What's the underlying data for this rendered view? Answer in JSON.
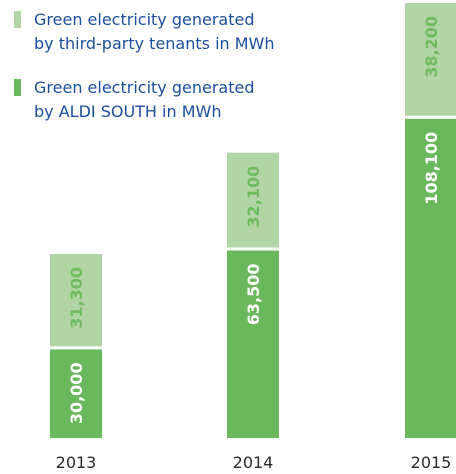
{
  "colors": {
    "aldi_south": "#69b85b",
    "third_party": "#b2d5a5",
    "third_party_text": "#6fbb5f",
    "legend_text": "#1b4f9c"
  },
  "legend": [
    {
      "line1": "Green electricity generated",
      "line2": "by third-party tenants in MWh",
      "color_key": "third_party"
    },
    {
      "line1": "Green electricity generated",
      "line2": "by ALDI SOUTH in MWh",
      "color_key": "aldi_south"
    }
  ],
  "chart_data": {
    "type": "bar",
    "stacked": true,
    "categories": [
      "2013",
      "2014",
      "2015"
    ],
    "series": [
      {
        "name": "Green electricity generated by ALDI SOUTH in MWh",
        "values": [
          30000,
          63500,
          108100
        ],
        "labels": [
          "30,000",
          "63,500",
          "108,100"
        ]
      },
      {
        "name": "Green electricity generated by third-party tenants in MWh",
        "values": [
          31300,
          32100,
          38200
        ],
        "labels": [
          "31,300",
          "32,100",
          "38,200"
        ]
      }
    ]
  }
}
